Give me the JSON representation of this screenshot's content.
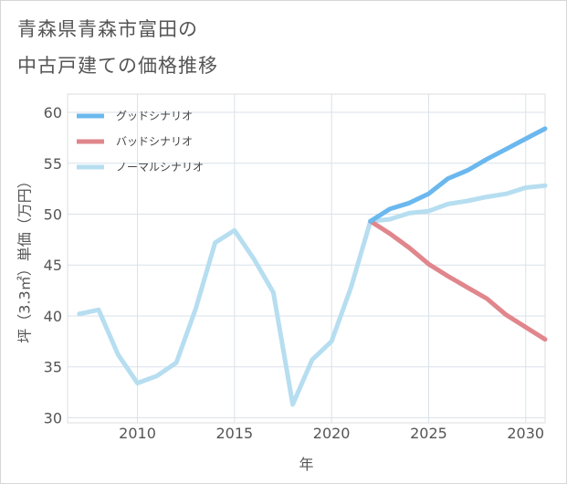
{
  "title_lines": [
    "青森県青森市富田の",
    "中古戸建ての価格推移"
  ],
  "chart_data": {
    "type": "line",
    "title": "青森県青森市富田の中古戸建ての価格推移",
    "xlabel": "年",
    "ylabel": "坪（3.3㎡）単価（万円）",
    "xlim": [
      2006.4,
      2031
    ],
    "ylim": [
      29.5,
      61.8
    ],
    "xticks": [
      2010,
      2015,
      2020,
      2025,
      2030
    ],
    "yticks": [
      30,
      35,
      40,
      45,
      50,
      55,
      60
    ],
    "grid": true,
    "legend_position": "top-left",
    "series": [
      {
        "name": "グッドシナリオ",
        "color": "#6bb8ee",
        "x": [
          2022,
          2023,
          2024,
          2025,
          2026,
          2027,
          2028,
          2029,
          2030,
          2031
        ],
        "values": [
          49.3,
          50.5,
          51.1,
          52.0,
          53.5,
          54.3,
          55.4,
          56.4,
          57.4,
          58.4
        ]
      },
      {
        "name": "バッドシナリオ",
        "color": "#e0868c",
        "x": [
          2022,
          2023,
          2024,
          2025,
          2026,
          2027,
          2028,
          2029,
          2030,
          2031
        ],
        "values": [
          49.3,
          48.1,
          46.7,
          45.1,
          43.9,
          42.8,
          41.7,
          40.1,
          38.9,
          37.7
        ]
      },
      {
        "name": "ノーマルシナリオ",
        "color": "#b6def0",
        "x": [
          2007,
          2008,
          2009,
          2010,
          2011,
          2012,
          2013,
          2014,
          2015,
          2016,
          2017,
          2018,
          2019,
          2020,
          2021,
          2022,
          2023,
          2024,
          2025,
          2026,
          2027,
          2028,
          2029,
          2030,
          2031
        ],
        "values": [
          40.2,
          40.6,
          36.2,
          33.4,
          34.1,
          35.4,
          40.7,
          47.2,
          48.4,
          45.6,
          42.3,
          31.3,
          35.7,
          37.5,
          42.8,
          49.3,
          49.5,
          50.1,
          50.3,
          51.0,
          51.3,
          51.7,
          52.0,
          52.6,
          52.8
        ]
      }
    ]
  }
}
